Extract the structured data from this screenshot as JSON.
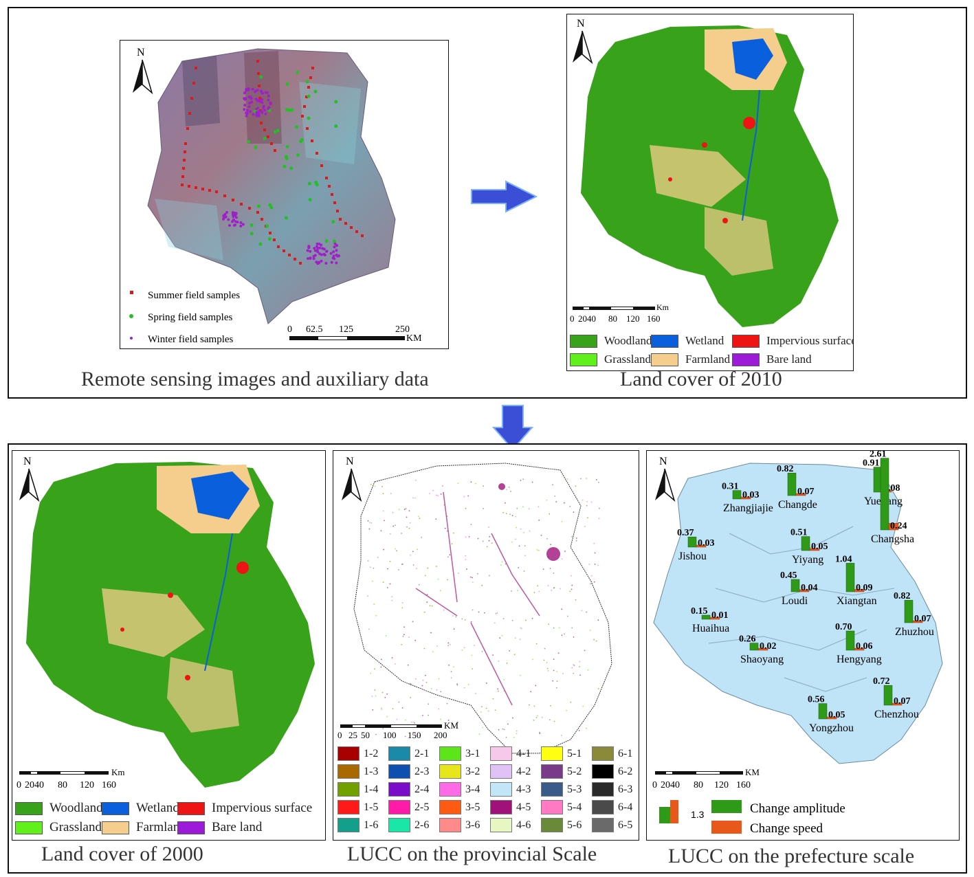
{
  "colors": {
    "woodland": "#39a21b",
    "wetland": "#0a5fdc",
    "impervious": "#ef1414",
    "grassland": "#62f01c",
    "farmland": "#f5cd8c",
    "bareland": "#9b1bd8",
    "arrow": "#3a4fd6",
    "prefecture_fill": "#bfe3f7",
    "change_amplitude": "#2e9a18",
    "change_speed": "#e8581a"
  },
  "top_left": {
    "caption": "Remote sensing images and auxiliary data",
    "north": "N",
    "samples": [
      {
        "label": "Summer field samples",
        "color": "#e01818",
        "icon": "star-marker"
      },
      {
        "label": "Spring field samples",
        "color": "#22c022",
        "icon": "circle-marker"
      },
      {
        "label": "Winter field samples",
        "color": "#a020c8",
        "icon": "dot-marker"
      }
    ],
    "scale": {
      "ticks": [
        "0",
        "62.5",
        "125",
        "250"
      ],
      "unit": "KM"
    }
  },
  "top_right": {
    "caption": "Land cover of 2010",
    "north": "N",
    "scale": {
      "ticks": [
        "0",
        "2040",
        "80",
        "120",
        "160"
      ],
      "unit": "Km"
    }
  },
  "land_cover_legend": [
    {
      "label": "Woodland",
      "key": "woodland"
    },
    {
      "label": "Wetland",
      "key": "wetland"
    },
    {
      "label": "Impervious surface",
      "key": "impervious"
    },
    {
      "label": "Grassland",
      "key": "grassland"
    },
    {
      "label": "Farmland",
      "key": "farmland"
    },
    {
      "label": "Bare land",
      "key": "bareland"
    }
  ],
  "bottom_left": {
    "caption": "Land cover of 2000",
    "north": "N",
    "scale": {
      "ticks": [
        "0",
        "2040",
        "80",
        "120",
        "160"
      ],
      "unit": "Km"
    }
  },
  "bottom_middle": {
    "caption": "LUCC on the provincial Scale",
    "north": "N",
    "scale": {
      "ticks": [
        "0",
        "25",
        "50",
        "100",
        "150",
        "200"
      ],
      "unit": "KM"
    },
    "lucc_legend": [
      [
        {
          "code": "1-2",
          "color": "#a80000"
        },
        {
          "code": "1-3",
          "color": "#a86a00"
        },
        {
          "code": "1-4",
          "color": "#72a000"
        },
        {
          "code": "1-5",
          "color": "#ff1a1a"
        },
        {
          "code": "1-6",
          "color": "#12a08a"
        }
      ],
      [
        {
          "code": "2-1",
          "color": "#1a8aa8"
        },
        {
          "code": "2-3",
          "color": "#0e4fb0"
        },
        {
          "code": "2-4",
          "color": "#7a0ec8"
        },
        {
          "code": "2-5",
          "color": "#ff1aa8"
        },
        {
          "code": "2-6",
          "color": "#1ae6a8"
        }
      ],
      [
        {
          "code": "3-1",
          "color": "#5ce61a"
        },
        {
          "code": "3-2",
          "color": "#e6e61a"
        },
        {
          "code": "3-4",
          "color": "#ff6ae6"
        },
        {
          "code": "3-5",
          "color": "#ff5a12"
        },
        {
          "code": "3-6",
          "color": "#ff8a8a"
        }
      ],
      [
        {
          "code": "4-1",
          "color": "#f7c8ea"
        },
        {
          "code": "4-2",
          "color": "#e0c2f7"
        },
        {
          "code": "4-3",
          "color": "#c2e6f7"
        },
        {
          "code": "4-5",
          "color": "#a0127a"
        },
        {
          "code": "4-6",
          "color": "#e6f7c2"
        }
      ],
      [
        {
          "code": "5-1",
          "color": "#ffff12"
        },
        {
          "code": "5-2",
          "color": "#7a3a8a"
        },
        {
          "code": "5-3",
          "color": "#3a5a8a"
        },
        {
          "code": "5-4",
          "color": "#ff7ac2"
        },
        {
          "code": "5-6",
          "color": "#6a8a3a"
        }
      ],
      [
        {
          "code": "6-1",
          "color": "#8a8a3a"
        },
        {
          "code": "6-2",
          "color": "#000000"
        },
        {
          "code": "6-3",
          "color": "#2a2a2a"
        },
        {
          "code": "6-4",
          "color": "#4a4a4a"
        },
        {
          "code": "6-5",
          "color": "#6a6a6a"
        }
      ]
    ]
  },
  "bottom_right": {
    "caption": "LUCC on the prefecture scale",
    "north": "N",
    "scale": {
      "ticks": [
        "0",
        "2040",
        "80",
        "120",
        "160"
      ],
      "unit": "KM"
    },
    "legend": {
      "sample_value": "1.3",
      "amplitude_label": "Change amplitude",
      "speed_label": "Change speed"
    },
    "prefectures": [
      {
        "name": "Zhangjiajie",
        "amplitude": "0.31",
        "speed": "0.03",
        "amp": 0.31,
        "spd": 0.03
      },
      {
        "name": "Changde",
        "amplitude": "0.82",
        "speed": "0.07",
        "amp": 0.82,
        "spd": 0.07
      },
      {
        "name": "Yueyang",
        "amplitude": "0.91",
        "speed": "0.08",
        "amp": 0.91,
        "spd": 0.08
      },
      {
        "name": "Jishou",
        "amplitude": "0.37",
        "speed": "0.03",
        "amp": 0.37,
        "spd": 0.03
      },
      {
        "name": "Yiyang",
        "amplitude": "0.51",
        "speed": "0.05",
        "amp": 0.51,
        "spd": 0.05
      },
      {
        "name": "Changsha",
        "amplitude": "2.61",
        "speed": "0.24",
        "amp": 2.61,
        "spd": 0.24
      },
      {
        "name": "Loudi",
        "amplitude": "0.45",
        "speed": "0.04",
        "amp": 0.45,
        "spd": 0.04
      },
      {
        "name": "Xiangtan",
        "amplitude": "1.04",
        "speed": "0.09",
        "amp": 1.04,
        "spd": 0.09
      },
      {
        "name": "Huaihua",
        "amplitude": "0.15",
        "speed": "0.01",
        "amp": 0.15,
        "spd": 0.01
      },
      {
        "name": "Zhuzhou",
        "amplitude": "0.82",
        "speed": "0.07",
        "amp": 0.82,
        "spd": 0.07
      },
      {
        "name": "Shaoyang",
        "amplitude": "0.26",
        "speed": "0.02",
        "amp": 0.26,
        "spd": 0.02
      },
      {
        "name": "Hengyang",
        "amplitude": "0.70",
        "speed": "0.06",
        "amp": 0.7,
        "spd": 0.06
      },
      {
        "name": "Chenzhou",
        "amplitude": "0.72",
        "speed": "0.07",
        "amp": 0.72,
        "spd": 0.07
      },
      {
        "name": "Yongzhou",
        "amplitude": "0.56",
        "speed": "0.05",
        "amp": 0.56,
        "spd": 0.05
      }
    ]
  }
}
